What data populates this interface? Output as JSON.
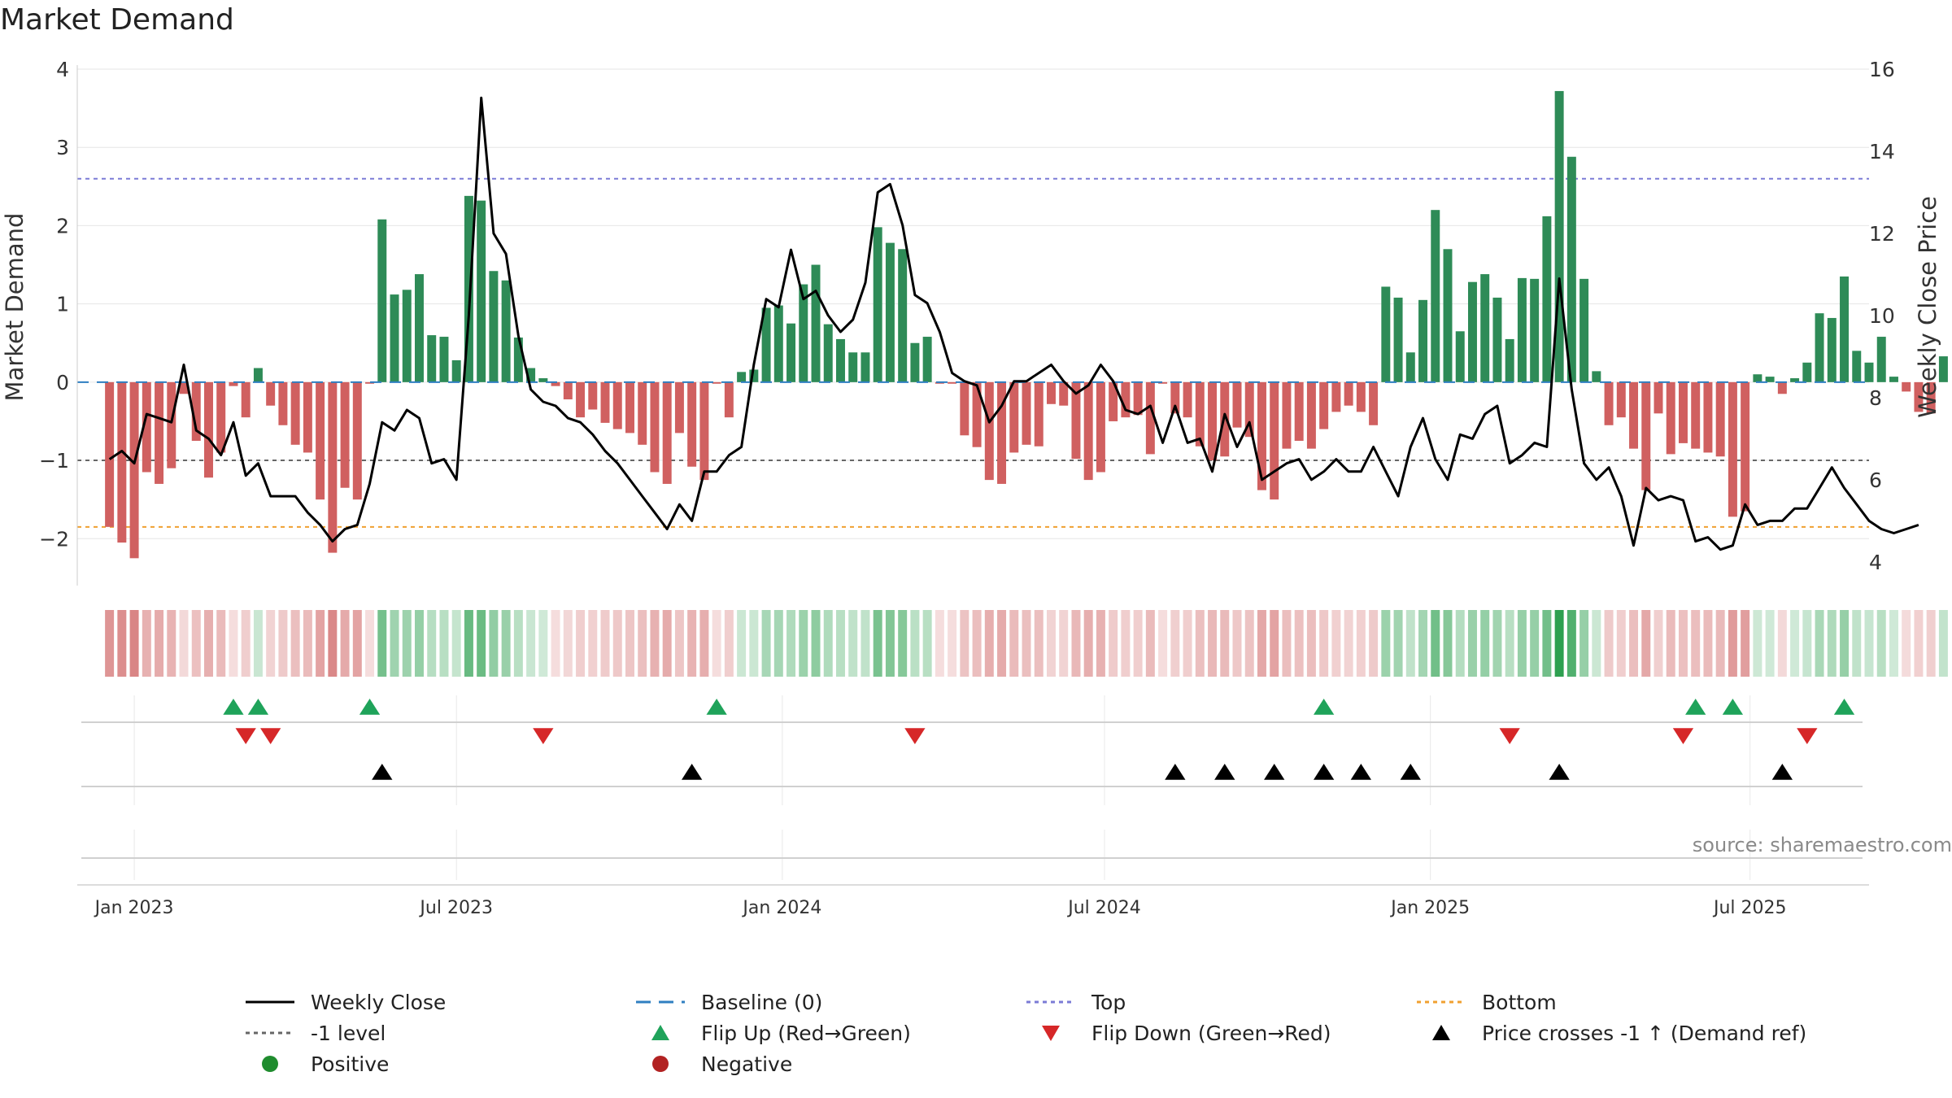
{
  "title": "Market Demand",
  "source": "source: sharemaestro.com",
  "colors": {
    "positive": "#2e8b57",
    "negative": "#d06060",
    "close": "#000000",
    "baseline": "#2f7fc1",
    "top": "#7b7bd6",
    "bottom": "#f0a030",
    "neg1": "#666666",
    "flipUp": "#1fa35a",
    "flipDown": "#d62728",
    "cross": "#000000",
    "posDot": "#1f8c2e",
    "negDot": "#b22222"
  },
  "legend": [
    {
      "key": "close",
      "label": "Weekly Close"
    },
    {
      "key": "baseline",
      "label": "Baseline (0)"
    },
    {
      "key": "top",
      "label": "Top"
    },
    {
      "key": "bottom",
      "label": "Bottom"
    },
    {
      "key": "neg1",
      "label": "-1 level"
    },
    {
      "key": "flipUp",
      "label": "Flip Up (Red→Green)"
    },
    {
      "key": "flipDown",
      "label": "Flip Down (Green→Red)"
    },
    {
      "key": "cross",
      "label": "Price crosses -1 ↑ (Demand ref)"
    },
    {
      "key": "posDot",
      "label": "Positive"
    },
    {
      "key": "negDot",
      "label": "Negative"
    }
  ],
  "chart_data": {
    "type": "bar",
    "title": "Market Demand",
    "ylabel": "Market Demand",
    "y2label": "Weekly Close Price",
    "ylim": [
      -2.6,
      4.0
    ],
    "y2lim": [
      3.7,
      16.0
    ],
    "yticks": [
      -2,
      -1,
      0,
      1,
      2,
      3,
      4
    ],
    "y2ticks": [
      4,
      6,
      8,
      10,
      12,
      14,
      16
    ],
    "xlim": [
      -2.6,
      142.0
    ],
    "xticks": [
      {
        "label": "Jan 2023",
        "week": 2
      },
      {
        "label": "Jul 2023",
        "week": 28
      },
      {
        "label": "Jan 2024",
        "week": 54.3
      },
      {
        "label": "Jul 2024",
        "week": 80.3
      },
      {
        "label": "Jan 2025",
        "week": 106.6
      },
      {
        "label": "Jul 2025",
        "week": 132.4
      }
    ],
    "reference_lines": {
      "baseline": 0,
      "top": 2.6,
      "minus1": -1,
      "bottom": -1.85
    },
    "demand": [
      -1.85,
      -2.05,
      -2.25,
      -1.15,
      -1.3,
      -1.1,
      -0.15,
      -0.75,
      -1.22,
      -0.9,
      -0.05,
      -0.45,
      0.18,
      -0.3,
      -0.55,
      -0.8,
      -0.9,
      -1.5,
      -2.18,
      -1.35,
      -1.5,
      -0.02,
      2.08,
      1.12,
      1.18,
      1.38,
      0.6,
      0.58,
      0.28,
      2.38,
      2.32,
      1.42,
      1.3,
      0.57,
      0.18,
      0.05,
      -0.05,
      -0.22,
      -0.45,
      -0.35,
      -0.52,
      -0.6,
      -0.65,
      -0.8,
      -1.15,
      -1.3,
      -0.65,
      -1.08,
      -1.25,
      -0.02,
      -0.45,
      0.13,
      0.16,
      0.95,
      0.98,
      0.75,
      1.25,
      1.5,
      0.74,
      0.55,
      0.38,
      0.38,
      1.98,
      1.78,
      1.7,
      0.5,
      0.58,
      -0.02,
      -0.02,
      -0.68,
      -0.83,
      -1.25,
      -1.3,
      -0.9,
      -0.8,
      -0.82,
      -0.28,
      -0.3,
      -0.98,
      -1.25,
      -1.15,
      -0.5,
      -0.45,
      -0.42,
      -0.92,
      -0.02,
      -0.4,
      -0.45,
      -0.82,
      -1.0,
      -0.95,
      -0.58,
      -0.7,
      -1.38,
      -1.5,
      -0.85,
      -0.75,
      -0.85,
      -0.6,
      -0.38,
      -0.3,
      -0.38,
      -0.55,
      1.22,
      1.08,
      0.38,
      1.05,
      2.2,
      1.7,
      0.65,
      1.28,
      1.38,
      1.08,
      0.55,
      1.33,
      1.32,
      2.12,
      3.72,
      2.88,
      1.32,
      0.14,
      -0.55,
      -0.45,
      -0.85,
      -1.38,
      -0.4,
      -0.92,
      -0.78,
      -0.85,
      -0.9,
      -0.95,
      -1.72,
      -1.65,
      0.1,
      0.07,
      -0.15,
      0.05,
      0.25,
      0.88,
      0.82,
      1.35,
      0.4,
      0.25,
      0.58,
      0.07,
      -0.12,
      -0.38,
      -0.4,
      0.33
    ],
    "close": [
      6.5,
      6.7,
      6.4,
      7.6,
      7.5,
      7.4,
      8.8,
      7.2,
      7.0,
      6.6,
      7.4,
      6.1,
      6.4,
      5.6,
      5.6,
      5.6,
      5.2,
      4.9,
      4.5,
      4.8,
      4.9,
      5.9,
      7.4,
      7.2,
      7.7,
      7.5,
      6.4,
      6.5,
      6.0,
      10.0,
      15.3,
      12.0,
      11.5,
      9.5,
      8.2,
      7.9,
      7.8,
      7.5,
      7.4,
      7.1,
      6.7,
      6.4,
      6.0,
      5.6,
      5.2,
      4.8,
      5.4,
      5.0,
      6.2,
      6.2,
      6.6,
      6.8,
      8.8,
      10.4,
      10.2,
      11.6,
      10.4,
      10.6,
      10.0,
      9.6,
      9.9,
      10.8,
      13.0,
      13.2,
      12.2,
      10.5,
      10.3,
      9.6,
      8.6,
      8.4,
      8.3,
      7.4,
      7.8,
      8.4,
      8.4,
      8.6,
      8.8,
      8.4,
      8.1,
      8.3,
      8.8,
      8.4,
      7.7,
      7.6,
      7.8,
      6.9,
      7.8,
      6.9,
      7.0,
      6.2,
      7.6,
      6.8,
      7.4,
      6.0,
      6.2,
      6.4,
      6.5,
      6.0,
      6.2,
      6.5,
      6.2,
      6.2,
      6.8,
      6.2,
      5.6,
      6.8,
      7.5,
      6.5,
      6.0,
      7.1,
      7.0,
      7.6,
      7.8,
      6.4,
      6.6,
      6.9,
      6.8,
      10.9,
      8.2,
      6.4,
      6.0,
      6.3,
      5.6,
      4.4,
      5.8,
      5.5,
      5.6,
      5.5,
      4.5,
      4.6,
      4.3,
      4.4,
      5.4,
      4.9,
      5.0,
      5.0,
      5.3,
      5.3,
      5.8,
      6.3,
      5.8,
      5.4,
      5.0,
      4.8,
      4.7,
      4.8,
      4.9
    ],
    "flip_up_weeks": [
      10,
      12,
      21,
      49,
      98,
      128,
      131,
      140
    ],
    "flip_down_weeks": [
      11,
      13,
      35,
      65,
      113,
      127,
      137
    ],
    "price_cross_weeks": [
      22,
      47,
      86,
      90,
      94,
      98,
      101,
      105,
      117,
      135
    ]
  }
}
